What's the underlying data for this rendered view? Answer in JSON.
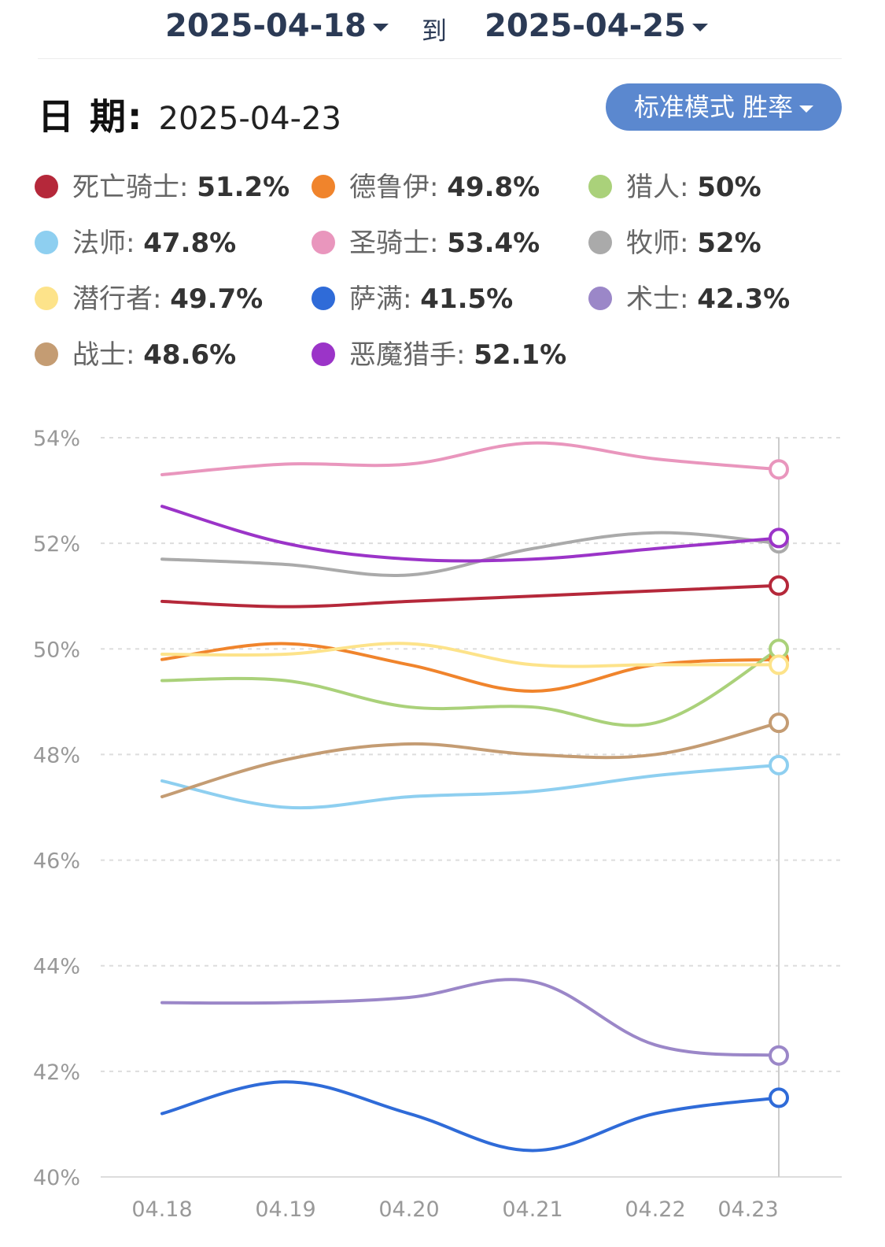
{
  "range": {
    "start_date": "2025-04-18",
    "end_date": "2025-04-25",
    "separator": "到"
  },
  "date_row": {
    "label": "日 期:",
    "value": "2025-04-23"
  },
  "mode_button": {
    "label": "标准模式 胜率"
  },
  "legend": [
    {
      "name": "死亡骑士",
      "value": "51.2%",
      "color": "#b5283a"
    },
    {
      "name": "德鲁伊",
      "value": "49.8%",
      "color": "#f0842c"
    },
    {
      "name": "猎人",
      "value": "50%",
      "color": "#aad17a"
    },
    {
      "name": "法师",
      "value": "47.8%",
      "color": "#8ecff0"
    },
    {
      "name": "圣骑士",
      "value": "53.4%",
      "color": "#e996bd"
    },
    {
      "name": "牧师",
      "value": "52%",
      "color": "#aaaaaa"
    },
    {
      "name": "潜行者",
      "value": "49.7%",
      "color": "#fde38a"
    },
    {
      "name": "萨满",
      "value": "41.5%",
      "color": "#2f6bd8"
    },
    {
      "name": "术士",
      "value": "42.3%",
      "color": "#9b87c8"
    },
    {
      "name": "战士",
      "value": "48.6%",
      "color": "#c49c73"
    },
    {
      "name": "恶魔猎手",
      "value": "52.1%",
      "color": "#9b34c8"
    }
  ],
  "chart_data": {
    "type": "line",
    "title": "",
    "xlabel": "",
    "ylabel": "",
    "categories": [
      "04.18",
      "04.19",
      "04.20",
      "04.21",
      "04.22",
      "04.23"
    ],
    "y_ticks": [
      "54%",
      "52%",
      "50%",
      "48%",
      "46%",
      "44%",
      "42%",
      "40%"
    ],
    "ylim": [
      40,
      54
    ],
    "grid": true,
    "highlight_category": "04.23",
    "series": [
      {
        "name": "死亡骑士",
        "color": "#b5283a",
        "values": [
          50.9,
          50.8,
          50.9,
          51.0,
          51.1,
          51.2
        ]
      },
      {
        "name": "德鲁伊",
        "color": "#f0842c",
        "values": [
          49.8,
          50.1,
          49.7,
          49.2,
          49.7,
          49.8
        ]
      },
      {
        "name": "猎人",
        "color": "#aad17a",
        "values": [
          49.4,
          49.4,
          48.9,
          48.9,
          48.6,
          50.0
        ]
      },
      {
        "name": "法师",
        "color": "#8ecff0",
        "values": [
          47.5,
          47.0,
          47.2,
          47.3,
          47.6,
          47.8
        ]
      },
      {
        "name": "圣骑士",
        "color": "#e996bd",
        "values": [
          53.3,
          53.5,
          53.5,
          53.9,
          53.6,
          53.4
        ]
      },
      {
        "name": "牧师",
        "color": "#aaaaaa",
        "values": [
          51.7,
          51.6,
          51.4,
          51.9,
          52.2,
          52.0
        ]
      },
      {
        "name": "潜行者",
        "color": "#fde38a",
        "values": [
          49.9,
          49.9,
          50.1,
          49.7,
          49.7,
          49.7
        ]
      },
      {
        "name": "萨满",
        "color": "#2f6bd8",
        "values": [
          41.2,
          41.8,
          41.2,
          40.5,
          41.2,
          41.5
        ]
      },
      {
        "name": "术士",
        "color": "#9b87c8",
        "values": [
          43.3,
          43.3,
          43.4,
          43.7,
          42.5,
          42.3
        ]
      },
      {
        "name": "战士",
        "color": "#c49c73",
        "values": [
          47.2,
          47.9,
          48.2,
          48.0,
          48.0,
          48.6
        ]
      },
      {
        "name": "恶魔猎手",
        "color": "#9b34c8",
        "values": [
          52.7,
          52.0,
          51.7,
          51.7,
          51.9,
          52.1
        ]
      }
    ]
  }
}
